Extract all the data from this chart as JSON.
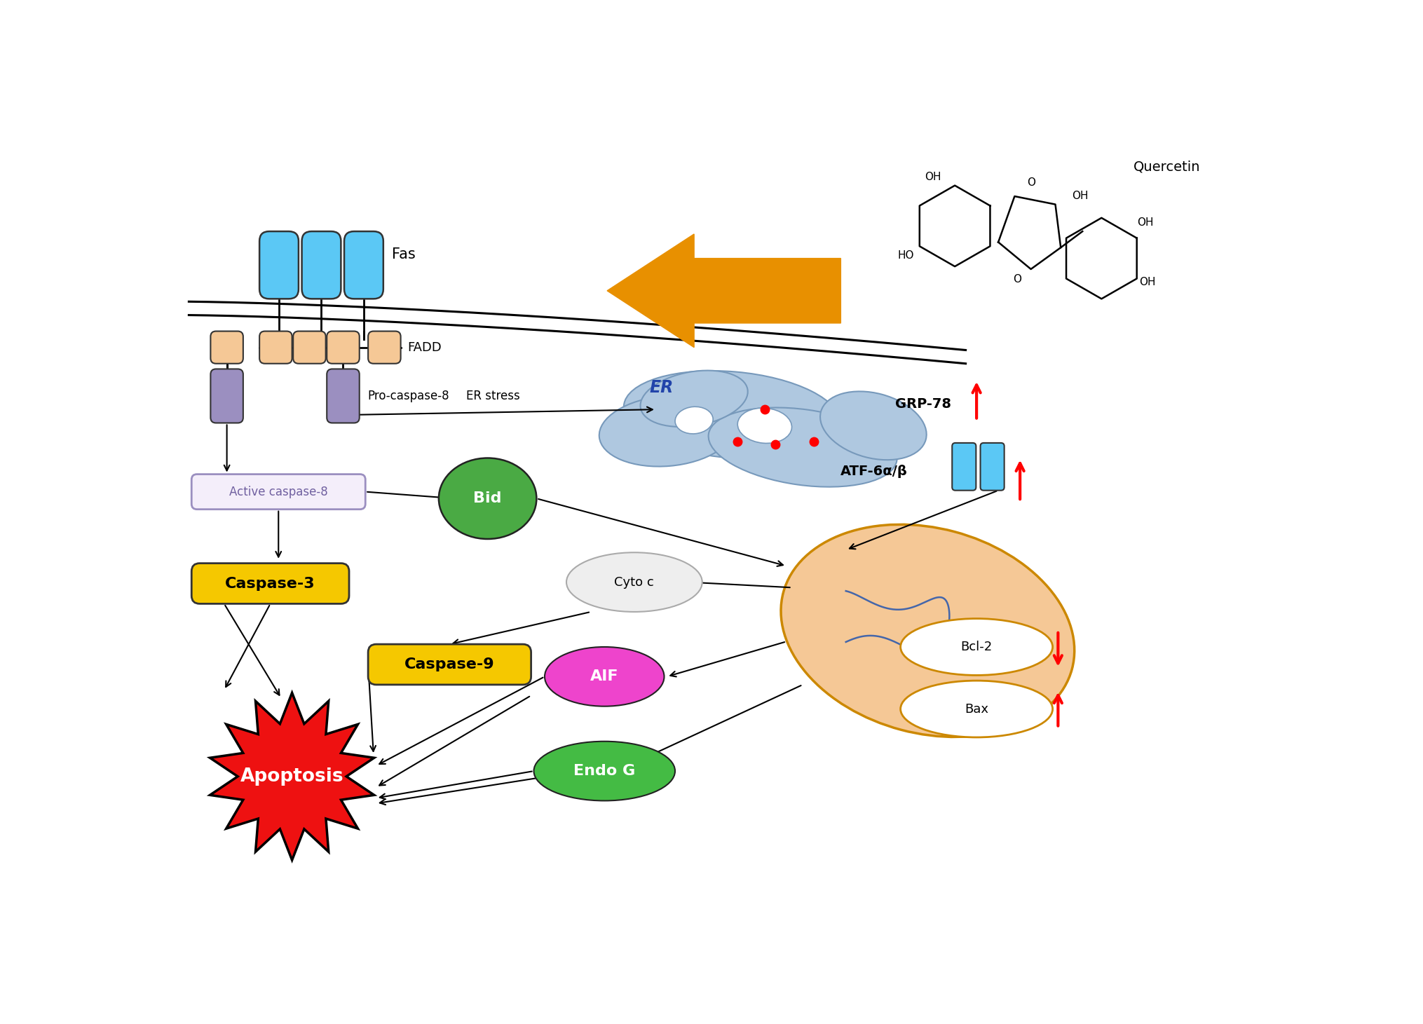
{
  "background_color": "#ffffff",
  "fas_color": "#5bc8f5",
  "fadd_color": "#f5c896",
  "procasp8_color": "#9b8fc0",
  "active_casp8_border": "#9b8fc0",
  "bid_color": "#4aaa44",
  "caspase3_color": "#f5c800",
  "caspase9_color": "#f5c800",
  "apoptosis_color": "#ee1111",
  "aif_color": "#ee44cc",
  "endoG_color": "#44bb44",
  "er_color": "#afc8e0",
  "mito_color": "#f5c896",
  "atf_color": "#5bc8f5",
  "orange_arrow_color": "#e89000",
  "quercetin_label": "Quercetin",
  "er_stress_label": "ER stress",
  "grp78_label": "GRP-78",
  "atf_label": "ATF-6α/β",
  "bcl2_label": "Bcl-2",
  "bax_label": "Bax",
  "fas_label": "Fas",
  "fadd_label": "FADD",
  "procasp8_label": "Pro-caspase-8",
  "active_casp8_label": "Active caspase-8",
  "bid_label": "Bid",
  "caspase3_label": "Caspase-3",
  "caspase9_label": "Caspase-9",
  "apoptosis_label": "Apoptosis",
  "er_label": "ER",
  "aif_label": "AIF",
  "endoG_label": "Endo G",
  "cyto_c_label": "Cyto c"
}
